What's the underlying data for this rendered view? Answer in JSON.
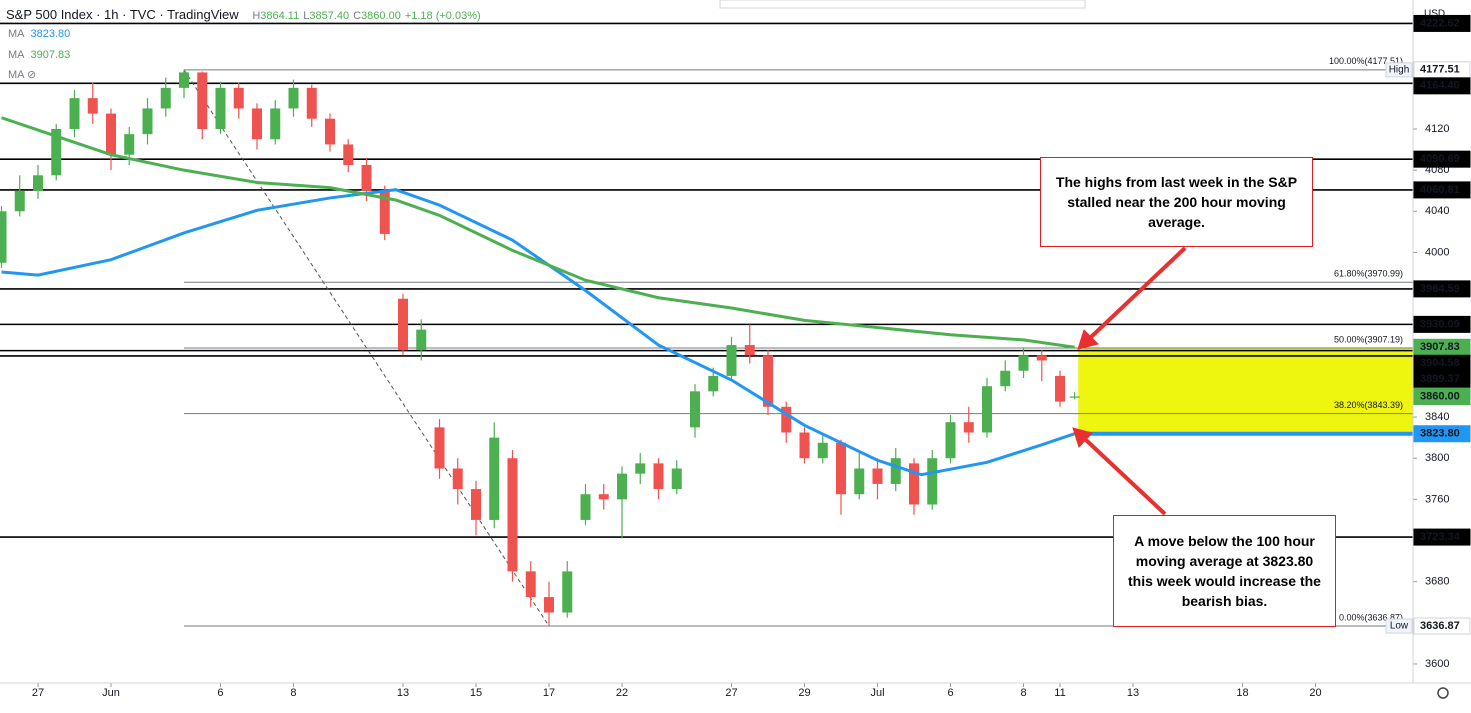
{
  "chart_data": {
    "type": "candlestick",
    "header": "S&P 500 Index · 1h · TVC · TradingView",
    "ohlc_stats": [
      {
        "key": "H",
        "value": "3864.11"
      },
      {
        "key": "L",
        "value": "3857.40"
      },
      {
        "key": "C",
        "value": "3860.00"
      }
    ],
    "change": "+1.18 (+0.03%)",
    "currency": "USD",
    "hidden_indicator": "MA",
    "xlim": [
      -1.041,
      37.671
    ],
    "ylim": [
      3581.5,
      4245.4
    ],
    "xticks": [
      {
        "value": 0,
        "label": "27"
      },
      {
        "value": 2,
        "label": "Jun"
      },
      {
        "value": 5,
        "label": "6"
      },
      {
        "value": 7,
        "label": "8"
      },
      {
        "value": 10,
        "label": "13"
      },
      {
        "value": 12,
        "label": "15"
      },
      {
        "value": 14,
        "label": "17"
      },
      {
        "value": 16,
        "label": "22"
      },
      {
        "value": 19,
        "label": "27"
      },
      {
        "value": 21,
        "label": "29"
      },
      {
        "value": 23,
        "label": "Jul"
      },
      {
        "value": 25,
        "label": "6"
      },
      {
        "value": 27,
        "label": "8"
      },
      {
        "value": 28,
        "label": "11"
      },
      {
        "value": 30,
        "label": "13"
      },
      {
        "value": 33,
        "label": "18"
      },
      {
        "value": 35,
        "label": "20"
      }
    ],
    "yticks": [
      4120,
      4080,
      4040,
      4000,
      3880,
      3840,
      3800,
      3760,
      3680,
      3600
    ],
    "grid": false,
    "up_color": "#4caf50",
    "down_color": "#ef5350",
    "x": [
      -1,
      -0.5,
      0,
      0.5,
      1,
      1.5,
      2,
      2.5,
      3,
      3.5,
      4,
      4.5,
      5,
      5.5,
      6,
      6.5,
      7,
      7.5,
      8,
      8.5,
      9,
      9.5,
      10,
      10.5,
      11,
      11.5,
      12,
      12.5,
      13,
      13.5,
      14,
      14.5,
      15,
      15.5,
      16,
      16.5,
      17,
      17.5,
      18,
      18.5,
      19,
      19.5,
      20,
      20.5,
      21,
      21.5,
      22,
      22.5,
      23,
      23.5,
      24,
      24.5,
      25,
      25.5,
      26,
      26.5,
      27,
      27.5,
      28,
      28.4
    ],
    "open": [
      3990,
      4040,
      4060,
      4075,
      4120,
      4150,
      4135,
      4095,
      4115,
      4140,
      4160,
      4175,
      4120,
      4160,
      4140,
      4110,
      4140,
      4160,
      4130,
      4105,
      4085,
      4060,
      3955,
      3905,
      3830,
      3790,
      3770,
      3740,
      3800,
      3690,
      3665,
      3650,
      3740,
      3765,
      3760,
      3785,
      3795,
      3770,
      3830,
      3865,
      3880,
      3910,
      3900,
      3850,
      3825,
      3800,
      3815,
      3765,
      3790,
      3775,
      3795,
      3755,
      3800,
      3835,
      3825,
      3870,
      3885,
      3900,
      3880,
      3858.82
    ],
    "high": [
      4045,
      4075,
      4085,
      4125,
      4158,
      4165,
      4140,
      4122,
      4150,
      4170,
      4177.51,
      4176,
      4166,
      4165,
      4145,
      4148,
      4168,
      4163,
      4135,
      4110,
      4092,
      4065,
      3960,
      3935,
      3838,
      3800,
      3778,
      3835,
      3808,
      3700,
      3680,
      3700,
      3775,
      3775,
      3792,
      3805,
      3800,
      3798,
      3872,
      3888,
      3918,
      3930,
      3905,
      3855,
      3830,
      3822,
      3818,
      3808,
      3800,
      3810,
      3800,
      3808,
      3842,
      3850,
      3878,
      3895,
      3907,
      3905,
      3885,
      3864.11
    ],
    "low": [
      3985,
      4035,
      4052,
      4070,
      4112,
      4125,
      4080,
      4085,
      4105,
      4132,
      4150,
      4110,
      4115,
      4130,
      4100,
      4105,
      4132,
      4122,
      4098,
      4078,
      4050,
      4012,
      3900,
      3895,
      3780,
      3755,
      3725,
      3732,
      3680,
      3655,
      3636.87,
      3645,
      3735,
      3750,
      3722,
      3775,
      3760,
      3765,
      3820,
      3860,
      3875,
      3892,
      3842,
      3815,
      3795,
      3795,
      3745,
      3760,
      3760,
      3768,
      3745,
      3750,
      3795,
      3815,
      3820,
      3865,
      3878,
      3875,
      3850,
      3857.4
    ],
    "close": [
      4040,
      4060,
      4075,
      4120,
      4150,
      4135,
      4095,
      4115,
      4140,
      4160,
      4175,
      4120,
      4160,
      4140,
      4110,
      4140,
      4160,
      4130,
      4105,
      4085,
      4060,
      4018,
      3905,
      3925,
      3790,
      3770,
      3740,
      3820,
      3690,
      3665,
      3650,
      3690,
      3765,
      3760,
      3785,
      3795,
      3770,
      3790,
      3865,
      3880,
      3910,
      3900,
      3850,
      3825,
      3800,
      3815,
      3765,
      3790,
      3775,
      3800,
      3755,
      3800,
      3835,
      3825,
      3870,
      3885,
      3900,
      3895,
      3855,
      3860
    ],
    "series": [
      {
        "name": "MA",
        "legend_value": "3823.80",
        "color": "#2196f3",
        "x": [
          -1,
          0,
          2,
          4,
          6,
          8,
          9.8,
          11,
          13,
          15,
          17,
          19,
          21,
          23,
          24.2,
          26,
          27.5,
          28.4
        ],
        "values": [
          3981,
          3978,
          3993,
          4019,
          4041,
          4053,
          4061,
          4046,
          4012,
          3963,
          3910,
          3876,
          3832,
          3798,
          3784,
          3796,
          3813,
          3823.8
        ],
        "tag": {
          "value": 3823.8,
          "label": "3823.80"
        }
      },
      {
        "name": "MA",
        "legend_value": "3907.83",
        "color": "#4caf50",
        "x": [
          -1,
          0,
          2,
          4,
          6,
          8,
          9.8,
          11,
          13,
          15,
          17,
          19,
          21,
          23,
          25,
          27,
          28.4
        ],
        "values": [
          4131,
          4119,
          4095,
          4080,
          4068,
          4063,
          4051,
          4036,
          4002,
          3973,
          3956,
          3946,
          3934,
          3927,
          3920,
          3915,
          3907.83
        ],
        "tag": {
          "value": 3907.83,
          "label": "3907.83"
        }
      }
    ],
    "last_price": {
      "value": 3860,
      "label": "3860.00",
      "color": "#4caf50"
    },
    "levels": [
      {
        "value": 4222.62,
        "label": "4222.62"
      },
      {
        "value": 4164.4,
        "label": "4164.40"
      },
      {
        "value": 4090.69,
        "label": "4090.69"
      },
      {
        "value": 4060.81,
        "label": "4060.81"
      },
      {
        "value": 3964.59,
        "label": "3964.59"
      },
      {
        "value": 3930.09,
        "label": "3930.09"
      },
      {
        "value": 3904.58,
        "label": "3904.58"
      },
      {
        "value": 3899.37,
        "label": "3899.37"
      },
      {
        "value": 3723.34,
        "label": "3723.34"
      }
    ],
    "extremes": [
      {
        "name": "High",
        "value": 4177.51,
        "label": "4177.51"
      },
      {
        "name": "Low",
        "value": 3636.87,
        "label": "3636.87"
      }
    ],
    "fib_start": 4,
    "fib_levels": [
      {
        "value": 4177.51,
        "label": "100.00%(4177.51)"
      },
      {
        "value": 3970.99,
        "label": "61.80%(3970.99)"
      },
      {
        "value": 3907.19,
        "label": "50.00%(3907.19)"
      },
      {
        "value": 3843.39,
        "label": "38.20%(3843.39)"
      },
      {
        "value": 3636.87,
        "label": "0.00%(3636.87)"
      }
    ],
    "trend_line": {
      "x": [
        4,
        14
      ],
      "y": [
        4177.51,
        3636.87
      ]
    },
    "highlight_zone": {
      "x_start": 28.5,
      "range": [
        3823.8,
        3907.83
      ],
      "color": "#eef50f",
      "line_color": "#2196f3"
    },
    "annotations": [
      {
        "text": "The highs from last week in the S&P stalled near the 200 hour moving average."
      },
      {
        "text": "A move below the 100 hour moving average at 3823.80 this week would increase the bearish bias."
      }
    ]
  }
}
